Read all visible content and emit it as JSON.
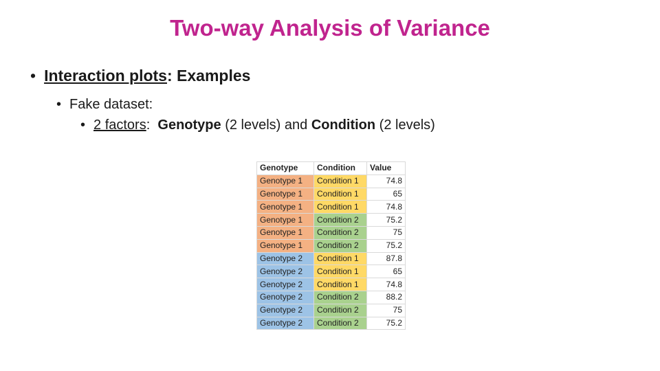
{
  "slide": {
    "title": "Two-way Analysis of Variance",
    "bullet1": {
      "dot": "•",
      "underlined": "Interaction plots",
      "rest": ": Examples"
    },
    "bullet2": {
      "dot": "•",
      "text": "Fake dataset:"
    },
    "bullet3": {
      "dot": "•",
      "underlined": "2 factors",
      "sep1": ":  ",
      "factor1": "Genotype",
      "mid": " (2 levels) and ",
      "factor2": "Condition",
      "end": " (2 levels)"
    }
  },
  "table": {
    "headers": [
      "Genotype",
      "Condition",
      "Value"
    ],
    "colors": {
      "genotype1": "#f4b183",
      "genotype2": "#9dc3e6",
      "condition1": "#ffd966",
      "condition2": "#a9d18e"
    },
    "rows": [
      {
        "genotype": "Genotype 1",
        "condition": "Condition 1",
        "value": "74.8",
        "g": "genotype1",
        "c": "condition1"
      },
      {
        "genotype": "Genotype 1",
        "condition": "Condition 1",
        "value": "65",
        "g": "genotype1",
        "c": "condition1"
      },
      {
        "genotype": "Genotype 1",
        "condition": "Condition 1",
        "value": "74.8",
        "g": "genotype1",
        "c": "condition1"
      },
      {
        "genotype": "Genotype 1",
        "condition": "Condition 2",
        "value": "75.2",
        "g": "genotype1",
        "c": "condition2"
      },
      {
        "genotype": "Genotype 1",
        "condition": "Condition 2",
        "value": "75",
        "g": "genotype1",
        "c": "condition2"
      },
      {
        "genotype": "Genotype 1",
        "condition": "Condition 2",
        "value": "75.2",
        "g": "genotype1",
        "c": "condition2"
      },
      {
        "genotype": "Genotype 2",
        "condition": "Condition 1",
        "value": "87.8",
        "g": "genotype2",
        "c": "condition1"
      },
      {
        "genotype": "Genotype 2",
        "condition": "Condition 1",
        "value": "65",
        "g": "genotype2",
        "c": "condition1"
      },
      {
        "genotype": "Genotype 2",
        "condition": "Condition 1",
        "value": "74.8",
        "g": "genotype2",
        "c": "condition1"
      },
      {
        "genotype": "Genotype 2",
        "condition": "Condition 2",
        "value": "88.2",
        "g": "genotype2",
        "c": "condition2"
      },
      {
        "genotype": "Genotype 2",
        "condition": "Condition 2",
        "value": "75",
        "g": "genotype2",
        "c": "condition2"
      },
      {
        "genotype": "Genotype 2",
        "condition": "Condition 2",
        "value": "75.2",
        "g": "genotype2",
        "c": "condition2"
      }
    ]
  }
}
